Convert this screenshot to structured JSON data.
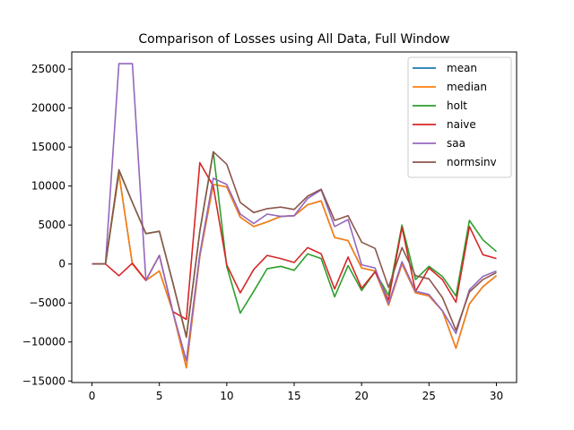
{
  "chart_data": {
    "type": "line",
    "title": "Comparison of Losses using All Data, Full Window",
    "xlabel": "",
    "ylabel": "",
    "xlim": [
      -1.5,
      31.5
    ],
    "ylim": [
      -15200,
      27200
    ],
    "x_ticks": [
      0,
      5,
      10,
      15,
      20,
      25,
      30
    ],
    "y_ticks": [
      -15000,
      -10000,
      -5000,
      0,
      5000,
      10000,
      15000,
      20000,
      25000
    ],
    "x": [
      0,
      1,
      2,
      3,
      4,
      5,
      6,
      7,
      8,
      9,
      10,
      11,
      12,
      13,
      14,
      15,
      16,
      17,
      18,
      19,
      20,
      21,
      22,
      23,
      24,
      25,
      26,
      27,
      28,
      29,
      30
    ],
    "legend_position": "top-right",
    "grid": false,
    "series": [
      {
        "name": "mean",
        "color": "#1f77b4",
        "values": [
          0,
          0,
          11600,
          0,
          -2100,
          -900,
          -6100,
          -13300,
          1000,
          10200,
          9900,
          6000,
          4800,
          5400,
          6100,
          6200,
          7600,
          8100,
          3400,
          3000,
          -500,
          -900,
          -5300,
          0,
          -3700,
          -4100,
          -6000,
          -10800,
          -5100,
          -2900,
          -1500
        ]
      },
      {
        "name": "median",
        "color": "#ff7f0e",
        "values": [
          0,
          0,
          11600,
          0,
          -2100,
          -900,
          -6100,
          -13300,
          1000,
          10200,
          9900,
          6000,
          4800,
          5400,
          6100,
          6200,
          7600,
          8100,
          3400,
          3000,
          -500,
          -900,
          -5300,
          0,
          -3700,
          -4100,
          -6000,
          -10800,
          -5100,
          -2900,
          -1500
        ]
      },
      {
        "name": "holt",
        "color": "#2ca02c",
        "values": [
          0,
          0,
          12000,
          7900,
          3900,
          4200,
          -2400,
          -9300,
          4200,
          14400,
          -300,
          -6300,
          -3500,
          -600,
          -300,
          -800,
          1300,
          700,
          -4200,
          -200,
          -3400,
          -1000,
          -4000,
          5000,
          -2000,
          -300,
          -1600,
          -4100,
          5600,
          3100,
          1600
        ]
      },
      {
        "name": "naive",
        "color": "#d62728",
        "values": [
          0,
          0,
          -1500,
          100,
          -2100,
          1100,
          -6100,
          -7100,
          13000,
          10000,
          -100,
          -3700,
          -700,
          1100,
          700,
          200,
          2100,
          1300,
          -3200,
          900,
          -3100,
          -1000,
          -4600,
          4700,
          -3500,
          -500,
          -2000,
          -4900,
          4800,
          1200,
          700
        ]
      },
      {
        "name": "saa",
        "color": "#9467bd",
        "values": [
          0,
          0,
          25700,
          25700,
          -2100,
          1100,
          -6100,
          -12400,
          1300,
          11000,
          10200,
          6400,
          5200,
          6400,
          6100,
          6200,
          8400,
          9500,
          4800,
          5700,
          -100,
          -500,
          -5100,
          300,
          -3500,
          -3900,
          -6000,
          -8900,
          -3300,
          -1600,
          -900
        ]
      },
      {
        "name": "normsinv",
        "color": "#8c564b",
        "values": [
          0,
          0,
          12100,
          7900,
          3900,
          4200,
          -2400,
          -9400,
          4200,
          14400,
          12800,
          7900,
          6600,
          7100,
          7300,
          7000,
          8700,
          9600,
          5600,
          6200,
          2800,
          2000,
          -3000,
          2100,
          -1500,
          -1900,
          -4300,
          -8500,
          -3600,
          -2000,
          -1100
        ]
      }
    ]
  }
}
